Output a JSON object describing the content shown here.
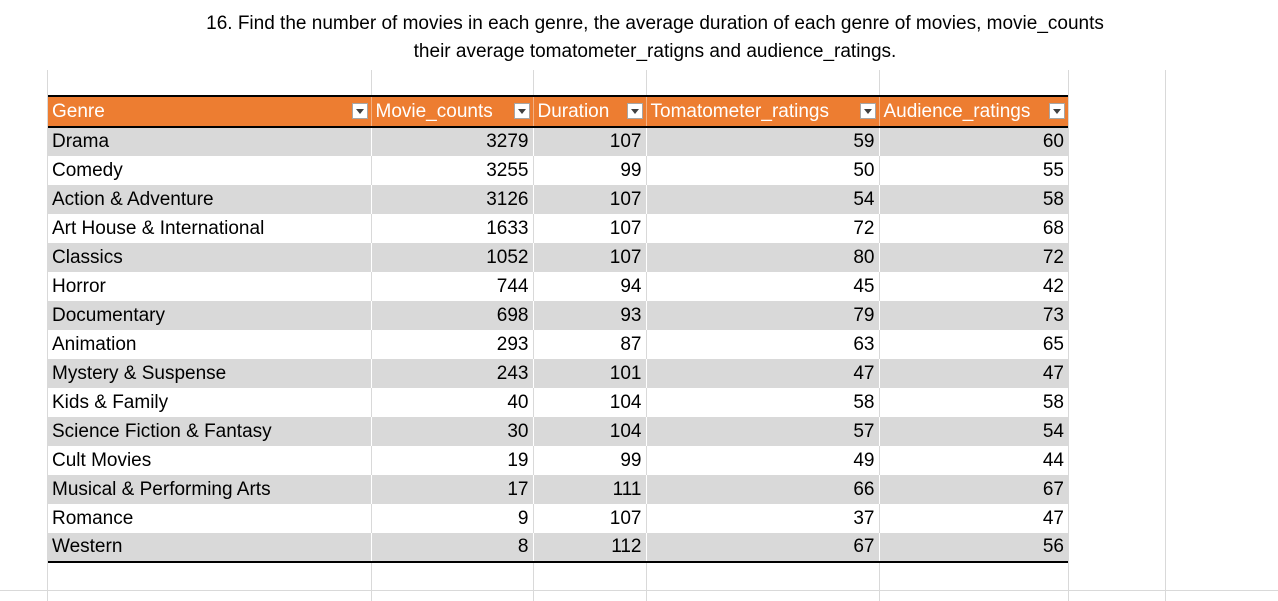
{
  "title": {
    "line1": "16. Find the number of movies in each genre,  the average duration of each genre of movies, movie_counts",
    "line2": "their average tomatometer_ratigns and audience_ratings."
  },
  "table": {
    "headers": [
      "Genre",
      "Movie_counts",
      "Duration",
      "Tomatometer_ratings",
      "Audience_ratings"
    ],
    "rows": [
      [
        "Drama",
        "3279",
        "107",
        "59",
        "60"
      ],
      [
        "Comedy",
        "3255",
        "99",
        "50",
        "55"
      ],
      [
        "Action & Adventure",
        "3126",
        "107",
        "54",
        "58"
      ],
      [
        "Art House & International",
        "1633",
        "107",
        "72",
        "68"
      ],
      [
        "Classics",
        "1052",
        "107",
        "80",
        "72"
      ],
      [
        "Horror",
        "744",
        "94",
        "45",
        "42"
      ],
      [
        "Documentary",
        "698",
        "93",
        "79",
        "73"
      ],
      [
        "Animation",
        "293",
        "87",
        "63",
        "65"
      ],
      [
        "Mystery & Suspense",
        "243",
        "101",
        "47",
        "47"
      ],
      [
        "Kids & Family",
        "40",
        "104",
        "58",
        "58"
      ],
      [
        "Science Fiction & Fantasy",
        "30",
        "104",
        "57",
        "54"
      ],
      [
        "Cult Movies",
        "19",
        "99",
        "49",
        "44"
      ],
      [
        "Musical & Performing Arts",
        "17",
        "111",
        "66",
        "67"
      ],
      [
        "Romance",
        "9",
        "107",
        "37",
        "47"
      ],
      [
        "Western",
        "8",
        "112",
        "67",
        "56"
      ]
    ]
  },
  "colors": {
    "header_bg": "#ed7d31",
    "band": "#d9d9d9",
    "grid": "#d9d9d9"
  },
  "icons": {
    "filter": "dropdown-arrow-icon"
  }
}
